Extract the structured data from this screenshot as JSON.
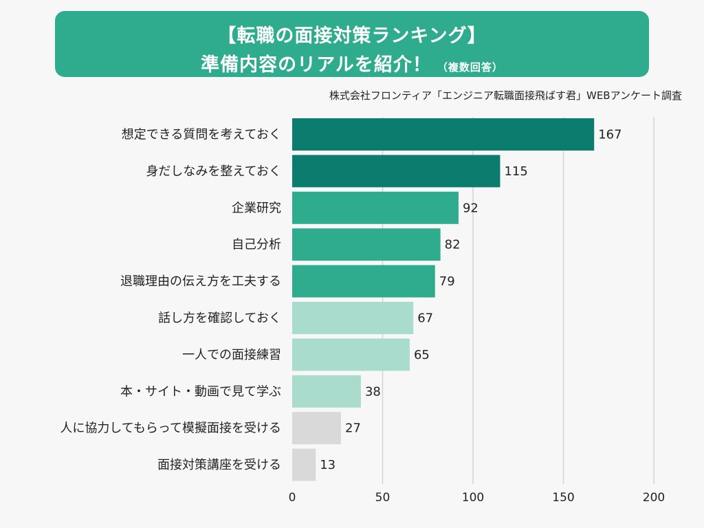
{
  "header": {
    "title_line1": "【転職の面接対策ランキング】",
    "title_line2": "準備内容のリアルを紹介！",
    "title_note": "（複数回答）"
  },
  "source": "株式会社フロンティア「エンジニア転職面接飛ばす君」WEBアンケート調査",
  "chart_data": {
    "type": "bar",
    "orientation": "horizontal",
    "title": "【転職の面接対策ランキング】準備内容のリアルを紹介！（複数回答）",
    "categories": [
      "想定できる質問を考えておく",
      "身だしなみを整えておく",
      "企業研究",
      "自己分析",
      "退職理由の伝え方を工夫する",
      "話し方を確認しておく",
      "一人での面接練習",
      "本・サイト・動画で見て学ぶ",
      "人に協力してもらって模擬面接を受ける",
      "面接対策講座を受ける"
    ],
    "values": [
      167,
      115,
      92,
      82,
      79,
      67,
      65,
      38,
      27,
      13
    ],
    "colors": [
      "#0c7c6e",
      "#0c7c6e",
      "#2fac8e",
      "#2fac8e",
      "#2fac8e",
      "#a9dccd",
      "#a9dccd",
      "#a9dccd",
      "#d9d9d9",
      "#d9d9d9"
    ],
    "xlim": [
      0,
      200
    ],
    "xticks": [
      0,
      50,
      100,
      150,
      200
    ],
    "grid": true
  }
}
